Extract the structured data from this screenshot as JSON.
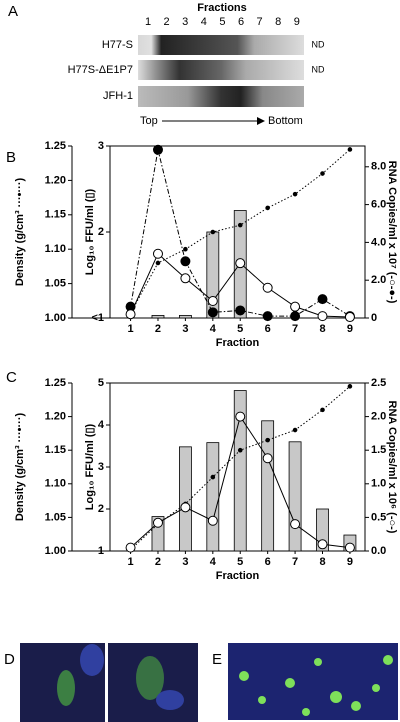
{
  "panel_a": {
    "label": "A",
    "title": "Fractions",
    "fractions": [
      "1",
      "2",
      "3",
      "4",
      "5",
      "6",
      "7",
      "8",
      "9"
    ],
    "lanes": [
      {
        "name": "H77-S",
        "note": "ND"
      },
      {
        "name": "H77S-ΔE1P7",
        "note": "ND"
      },
      {
        "name": "JFH-1"
      }
    ],
    "top": "Top",
    "bottom": "Bottom"
  },
  "chart_data": [
    {
      "type": "combo",
      "label": "B",
      "x_label": "Fraction",
      "categories": [
        "1",
        "2",
        "3",
        "4",
        "5",
        "6",
        "7",
        "8",
        "9"
      ],
      "y_label": "Density (g/cm³ ···•···)",
      "ylim": [
        1.0,
        1.25
      ],
      "yticks": [
        {
          "value": 1.0,
          "label": "1.00"
        },
        1.05,
        {
          "value": 1.1,
          "label": "1.10"
        },
        1.15,
        {
          "value": 1.2,
          "label": "1.20"
        },
        1.25
      ],
      "y3_label": "Log₁₀ FFU/ml (▯)",
      "y3lim": [
        1,
        3
      ],
      "y3ticks": [
        {
          "value": 1,
          "label": "<1"
        },
        2,
        3
      ],
      "y2_label": "RNA Copies/ml x 10⁷ (-○-●-)",
      "y2lim": [
        0,
        9.1
      ],
      "y2ticks": [
        0,
        {
          "value": 2,
          "label": "2.0"
        },
        {
          "value": 4,
          "label": "4.0"
        },
        {
          "value": 6,
          "label": "6.0"
        },
        {
          "value": 8,
          "label": "8.0"
        }
      ],
      "series": [
        {
          "type": "bar",
          "axis": "y3",
          "color": "#c8c8c8",
          "values": [
            null,
            1.03,
            1.03,
            2.0,
            2.25,
            null,
            null,
            null,
            null
          ]
        },
        {
          "type": "line",
          "axis": "y",
          "marker": "dot",
          "dash": "dotted",
          "color": "#000000",
          "values": [
            1.007,
            1.08,
            1.1,
            1.125,
            1.135,
            1.16,
            1.18,
            1.21,
            1.245
          ]
        },
        {
          "type": "line",
          "axis": "y2",
          "marker": "filled",
          "dash": "dashdot",
          "color": "#000000",
          "values": [
            0.6,
            8.9,
            3.0,
            0.3,
            0.4,
            0.1,
            0.1,
            1.0,
            0.1
          ]
        },
        {
          "type": "line",
          "axis": "y2",
          "marker": "open",
          "dash": "solid",
          "color": "#000000",
          "values": [
            0.2,
            3.4,
            2.1,
            0.9,
            2.9,
            1.6,
            0.6,
            0.1,
            0.05
          ]
        }
      ]
    },
    {
      "type": "combo",
      "label": "C",
      "x_label": "Fraction",
      "categories": [
        "1",
        "2",
        "3",
        "4",
        "5",
        "6",
        "7",
        "8",
        "9"
      ],
      "y_label": "Density (g/cm³ ···•···)",
      "ylim": [
        1.0,
        1.25
      ],
      "yticks": [
        {
          "value": 1.0,
          "label": "1.00"
        },
        1.05,
        {
          "value": 1.1,
          "label": "1.10"
        },
        1.15,
        {
          "value": 1.2,
          "label": "1.20"
        },
        1.25
      ],
      "y3_label": "Log₁₀ FFU/ml (▯)",
      "y3lim": [
        1,
        5
      ],
      "y3ticks": [
        1,
        2,
        3,
        4,
        5
      ],
      "y2_label": "RNA Copies/ml x 10⁶ (-○-)",
      "y2lim": [
        0,
        2.5
      ],
      "y2ticks": [
        {
          "value": 0,
          "label": "0.0"
        },
        0.5,
        {
          "value": 1,
          "label": "1.0"
        },
        1.5,
        {
          "value": 2,
          "label": "2.0"
        },
        2.5
      ],
      "series": [
        {
          "type": "bar",
          "axis": "y3",
          "color": "#c8c8c8",
          "values": [
            null,
            1.82,
            3.48,
            3.58,
            4.82,
            4.1,
            3.6,
            2.0,
            1.38
          ]
        },
        {
          "type": "line",
          "axis": "y",
          "marker": "dot",
          "dash": "dotted",
          "color": "#000000",
          "values": [
            1.002,
            1.04,
            1.07,
            1.11,
            1.15,
            1.165,
            1.18,
            1.21,
            1.245
          ]
        },
        {
          "type": "line",
          "axis": "y2",
          "marker": "open",
          "dash": "solid",
          "color": "#000000",
          "values": [
            0.05,
            0.42,
            0.65,
            0.45,
            2.0,
            1.38,
            0.4,
            0.1,
            0.05
          ]
        }
      ]
    }
  ],
  "panel_d": {
    "label": "D"
  },
  "panel_e": {
    "label": "E"
  }
}
